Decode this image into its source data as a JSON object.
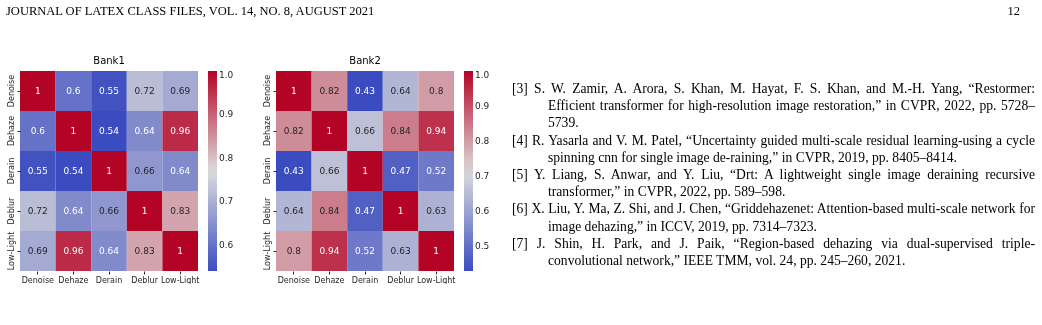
{
  "chart_data": [
    {
      "type": "heatmap",
      "title": "Bank1",
      "categories": [
        "Denoise",
        "Dehaze",
        "Derain",
        "Deblur",
        "Low-Light"
      ],
      "y_categories": [
        "Denoise",
        "Dehaze",
        "Derain",
        "Deblur",
        "Low-Light"
      ],
      "cells": [
        [
          1,
          0.6,
          0.55,
          0.72,
          0.69
        ],
        [
          0.6,
          1,
          0.54,
          0.64,
          0.96
        ],
        [
          0.55,
          0.54,
          1,
          0.66,
          0.64
        ],
        [
          0.72,
          0.64,
          0.66,
          1,
          0.83
        ],
        [
          0.69,
          0.96,
          0.64,
          0.83,
          1
        ]
      ],
      "clim": [
        0.54,
        1.0
      ],
      "cticks": [
        0.6,
        0.7,
        0.8,
        0.9,
        {
          "value": 1,
          "label": "1.0"
        }
      ],
      "data_labels": true
    },
    {
      "type": "heatmap",
      "title": "Bank2",
      "categories": [
        "Denoise",
        "Dehaze",
        "Derain",
        "Deblur",
        "Low-Light"
      ],
      "y_categories": [
        "Denoise",
        "Dehaze",
        "Derain",
        "Deblur",
        "Low-Light"
      ],
      "cells": [
        [
          1,
          0.82,
          0.43,
          0.64,
          0.8
        ],
        [
          0.82,
          1,
          0.66,
          0.84,
          0.94
        ],
        [
          0.43,
          0.66,
          1,
          0.47,
          0.52
        ],
        [
          0.64,
          0.84,
          0.47,
          1,
          0.63
        ],
        [
          0.8,
          0.94,
          0.52,
          0.63,
          1
        ]
      ],
      "clim": [
        0.43,
        1.0
      ],
      "cticks": [
        0.5,
        0.6,
        0.7,
        0.8,
        0.9,
        {
          "value": 1,
          "label": "1.0"
        }
      ],
      "data_labels": true
    },
    {
      "type": "other",
      "annotations": [
        "JOURNAL OF LATEX CLASS FILES, VOL. 14, NO. 8, AUGUST 2021",
        "12",
        "[3] S. W. Zamir, A. Arora, S. Khan, M. Hayat, F. S. Khan, and M.-H. Yang, “Restormer: Efficient transformer for high-resolution image restoration,” in CVPR, 2022, pp. 5728–5739.",
        "[4] R. Yasarla and V. M. Patel, “Uncertainty guided multi-scale residual learning-using a cycle spinning cnn for single image de-raining,” in CVPR, 2019, pp. 8405–8414.",
        "[5] Y. Liang, S. Anwar, and Y. Liu, “Drt: A lightweight single image deraining recursive transformer,” in CVPR, 2022, pp. 589–598.",
        "[6] X. Liu, Y. Ma, Z. Shi, and J. Chen, “Griddehazenet: Attention-based multi-scale network for image dehazing,” in ICCV, 2019, pp. 7314–7323.",
        "[7] J. Shin, H. Park, and J. Paik, “Region-based dehazing via dual-supervised triple-convolutional network,” IEEE TMM, vol. 24, pp. 245–260, 2021."
      ]
    }
  ]
}
